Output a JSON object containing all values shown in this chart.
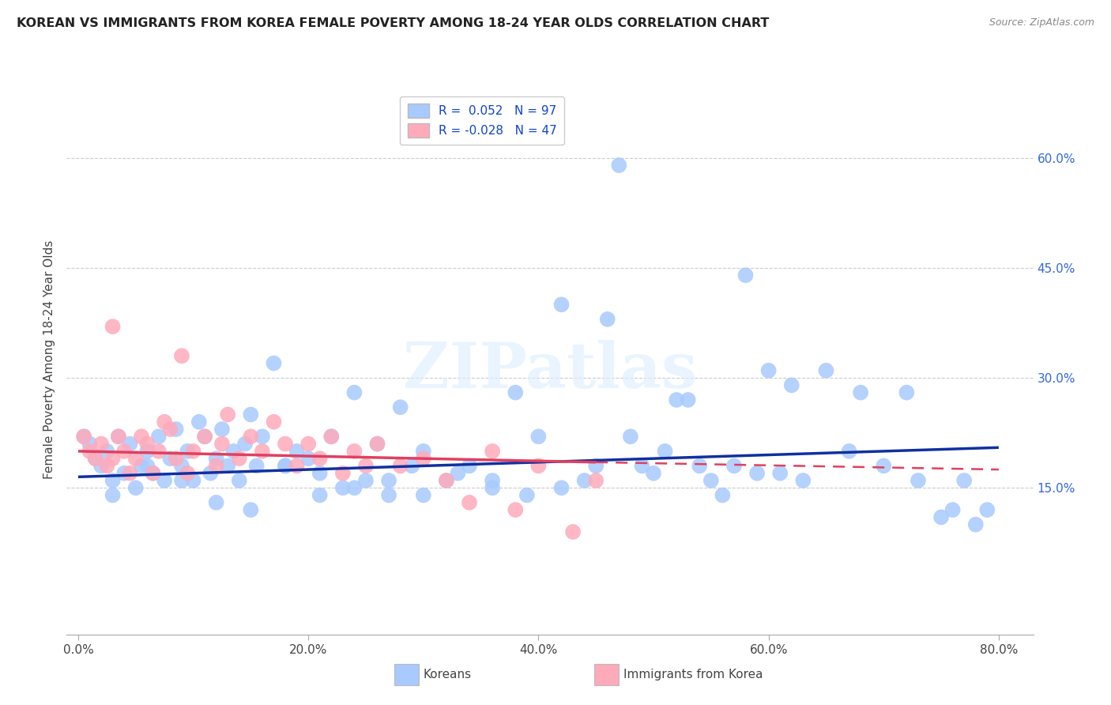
{
  "title": "KOREAN VS IMMIGRANTS FROM KOREA FEMALE POVERTY AMONG 18-24 YEAR OLDS CORRELATION CHART",
  "source": "Source: ZipAtlas.com",
  "xlabel_vals": [
    0,
    20,
    40,
    60,
    80
  ],
  "ylabel_vals": [
    15,
    30,
    45,
    60
  ],
  "ylabel_label": "Female Poverty Among 18-24 Year Olds",
  "xlim": [
    -1,
    83
  ],
  "ylim": [
    -5,
    70
  ],
  "legend1_label": "R =  0.052   N = 97",
  "legend2_label": "R = -0.028   N = 47",
  "bottom_legend1": "Koreans",
  "bottom_legend2": "Immigrants from Korea",
  "blue_color": "#A8CAFE",
  "pink_color": "#FFAABB",
  "line_blue": "#1030A0",
  "line_pink": "#E04060",
  "watermark_text": "ZIPatlas",
  "grid_color": "#CCCCCC",
  "bg_color": "#FFFFFF",
  "blue_x": [
    0.5,
    1.0,
    1.5,
    2.0,
    2.5,
    3.0,
    3.5,
    4.0,
    4.5,
    5.0,
    5.5,
    6.0,
    6.5,
    7.0,
    7.5,
    8.0,
    8.5,
    9.0,
    9.5,
    10.0,
    10.5,
    11.0,
    11.5,
    12.0,
    12.5,
    13.0,
    13.5,
    14.0,
    14.5,
    15.0,
    15.5,
    16.0,
    17.0,
    18.0,
    19.0,
    20.0,
    21.0,
    22.0,
    23.0,
    24.0,
    25.0,
    26.0,
    27.0,
    28.0,
    29.0,
    30.0,
    32.0,
    34.0,
    36.0,
    38.0,
    40.0,
    42.0,
    44.0,
    45.0,
    46.0,
    47.0,
    48.0,
    49.0,
    50.0,
    51.0,
    52.0,
    53.0,
    54.0,
    55.0,
    56.0,
    57.0,
    58.0,
    59.0,
    60.0,
    61.0,
    62.0,
    63.0,
    65.0,
    67.0,
    68.0,
    70.0,
    72.0,
    73.0,
    75.0,
    76.0,
    77.0,
    78.0,
    79.0,
    3.0,
    6.0,
    9.0,
    12.0,
    15.0,
    18.0,
    21.0,
    24.0,
    27.0,
    30.0,
    33.0,
    36.0,
    39.0,
    42.0
  ],
  "blue_y": [
    22.0,
    21.0,
    19.0,
    18.0,
    20.0,
    16.0,
    22.0,
    17.0,
    21.0,
    15.0,
    18.0,
    20.0,
    17.0,
    22.0,
    16.0,
    19.0,
    23.0,
    18.0,
    20.0,
    16.0,
    24.0,
    22.0,
    17.0,
    19.0,
    23.0,
    18.0,
    20.0,
    16.0,
    21.0,
    25.0,
    18.0,
    22.0,
    32.0,
    18.0,
    20.0,
    19.0,
    17.0,
    22.0,
    15.0,
    28.0,
    16.0,
    21.0,
    14.0,
    26.0,
    18.0,
    20.0,
    16.0,
    18.0,
    15.0,
    28.0,
    22.0,
    40.0,
    16.0,
    18.0,
    38.0,
    59.0,
    22.0,
    18.0,
    17.0,
    20.0,
    27.0,
    27.0,
    18.0,
    16.0,
    14.0,
    18.0,
    44.0,
    17.0,
    31.0,
    17.0,
    29.0,
    16.0,
    31.0,
    20.0,
    28.0,
    18.0,
    28.0,
    16.0,
    11.0,
    12.0,
    16.0,
    10.0,
    12.0,
    14.0,
    18.0,
    16.0,
    13.0,
    12.0,
    18.0,
    14.0,
    15.0,
    16.0,
    14.0,
    17.0,
    16.0,
    14.0,
    15.0
  ],
  "pink_x": [
    0.5,
    1.0,
    1.5,
    2.0,
    2.5,
    3.0,
    3.0,
    3.5,
    4.0,
    4.5,
    5.0,
    5.5,
    6.0,
    6.5,
    7.0,
    7.5,
    8.0,
    8.5,
    9.0,
    9.5,
    10.0,
    11.0,
    12.0,
    12.5,
    13.0,
    14.0,
    15.0,
    16.0,
    17.0,
    18.0,
    19.0,
    20.0,
    21.0,
    22.0,
    23.0,
    24.0,
    25.0,
    26.0,
    28.0,
    30.0,
    32.0,
    34.0,
    36.0,
    38.0,
    40.0,
    43.0,
    45.0
  ],
  "pink_y": [
    22.0,
    20.0,
    19.0,
    21.0,
    18.0,
    37.0,
    19.0,
    22.0,
    20.0,
    17.0,
    19.0,
    22.0,
    21.0,
    17.0,
    20.0,
    24.0,
    23.0,
    19.0,
    33.0,
    17.0,
    20.0,
    22.0,
    18.0,
    21.0,
    25.0,
    19.0,
    22.0,
    20.0,
    24.0,
    21.0,
    18.0,
    21.0,
    19.0,
    22.0,
    17.0,
    20.0,
    18.0,
    21.0,
    18.0,
    19.0,
    16.0,
    13.0,
    20.0,
    12.0,
    18.0,
    9.0,
    16.0
  ]
}
